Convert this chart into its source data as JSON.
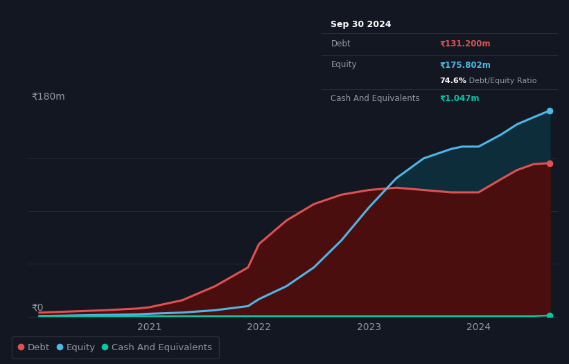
{
  "background_color": "#131722",
  "plot_bg_color": "#131722",
  "grid_color": "#252a3a",
  "text_color": "#9598a1",
  "debt_color": "#e05252",
  "equity_color": "#4db8e8",
  "cash_color": "#00c9a7",
  "debt_fill_color": "#4a0e0e",
  "equity_fill_color": "#0d2d3a",
  "ylim": [
    0,
    180
  ],
  "ylabel_text": "₹180m",
  "y0_text": "₹0",
  "x_ticks": [
    2021,
    2022,
    2023,
    2024
  ],
  "legend_items": [
    "Debt",
    "Equity",
    "Cash And Equivalents"
  ],
  "tooltip_title": "Sep 30 2024",
  "tooltip_debt_label": "Debt",
  "tooltip_debt_value": "₹131.200m",
  "tooltip_equity_label": "Equity",
  "tooltip_equity_value": "₹175.802m",
  "tooltip_ratio_bold": "74.6%",
  "tooltip_ratio_normal": " Debt/Equity Ratio",
  "tooltip_cash_label": "Cash And Equivalents",
  "tooltip_cash_value": "₹1.047m",
  "time_x": [
    2020.0,
    2020.3,
    2020.6,
    2020.9,
    2021.0,
    2021.3,
    2021.6,
    2021.9,
    2022.0,
    2022.25,
    2022.5,
    2022.75,
    2023.0,
    2023.25,
    2023.5,
    2023.75,
    2023.85,
    2024.0,
    2024.2,
    2024.35,
    2024.5,
    2024.65
  ],
  "debt_y": [
    3.5,
    4.5,
    5.5,
    7,
    8,
    14,
    26,
    42,
    62,
    82,
    96,
    104,
    108,
    110,
    108,
    106,
    106,
    106,
    117,
    125,
    130,
    131
  ],
  "equity_y": [
    0.5,
    1,
    1.5,
    2,
    2.5,
    3.5,
    5.5,
    9,
    15,
    26,
    42,
    65,
    93,
    118,
    135,
    143,
    145,
    145,
    155,
    164,
    170,
    175.8
  ],
  "cash_y": [
    0.5,
    0.5,
    0.5,
    0.5,
    0.5,
    0.5,
    0.5,
    0.5,
    0.5,
    0.5,
    0.5,
    0.5,
    0.5,
    0.5,
    0.5,
    0.5,
    0.5,
    0.5,
    0.5,
    0.5,
    0.5,
    1.047
  ]
}
